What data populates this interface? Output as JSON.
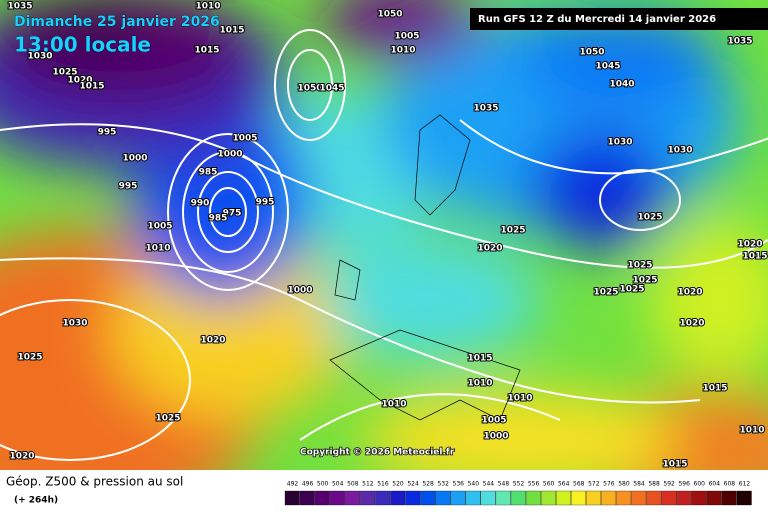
{
  "header": {
    "date": "Dimanche 25 janvier 2026",
    "time": "13:00 locale",
    "run": "Run GFS 12 Z du Mercredi 14 janvier 2026"
  },
  "copyright": "Copyright © 2026 Meteociel.fr",
  "footer": {
    "title": "Géop. Z500 & pression au sol",
    "lead": "(+ 264h)"
  },
  "scale": {
    "ticks": [
      492,
      496,
      500,
      504,
      508,
      512,
      516,
      520,
      524,
      528,
      532,
      536,
      540,
      544,
      548,
      552,
      556,
      560,
      564,
      568,
      572,
      576,
      580,
      584,
      588,
      592,
      596,
      600,
      604,
      608,
      612
    ],
    "colors": [
      "#2a0033",
      "#3d0050",
      "#55006e",
      "#6a0a8a",
      "#7a1aa0",
      "#5a2aa8",
      "#3a2aba",
      "#1a1ac8",
      "#0a2ae0",
      "#0050f0",
      "#0a78f5",
      "#1aa0f5",
      "#30c0f0",
      "#50dde0",
      "#60e8b0",
      "#50e070",
      "#70e040",
      "#a0e830",
      "#d0f020",
      "#f8f020",
      "#f8d020",
      "#f8b020",
      "#f89020",
      "#f07020",
      "#e85020",
      "#d83020",
      "#c02020",
      "#a01010",
      "#800808",
      "#500000",
      "#200000"
    ]
  },
  "isobars": [
    1035,
    1030,
    1025,
    1020,
    1015,
    1010,
    1015,
    1015,
    995,
    1000,
    995,
    985,
    990,
    975,
    985,
    995,
    1005,
    1010,
    1005,
    1000,
    1050,
    1045,
    1050,
    1010,
    1005,
    1035,
    1050,
    1045,
    1040,
    1030,
    1030,
    1025,
    1020,
    1025,
    1025,
    1025,
    1025,
    1025,
    1020,
    1020,
    1015,
    1010,
    1010,
    1010,
    1005,
    1000,
    1000,
    1020,
    1030,
    1025,
    1025,
    1020,
    1015,
    1010,
    1015,
    1035,
    1020,
    1015
  ]
}
